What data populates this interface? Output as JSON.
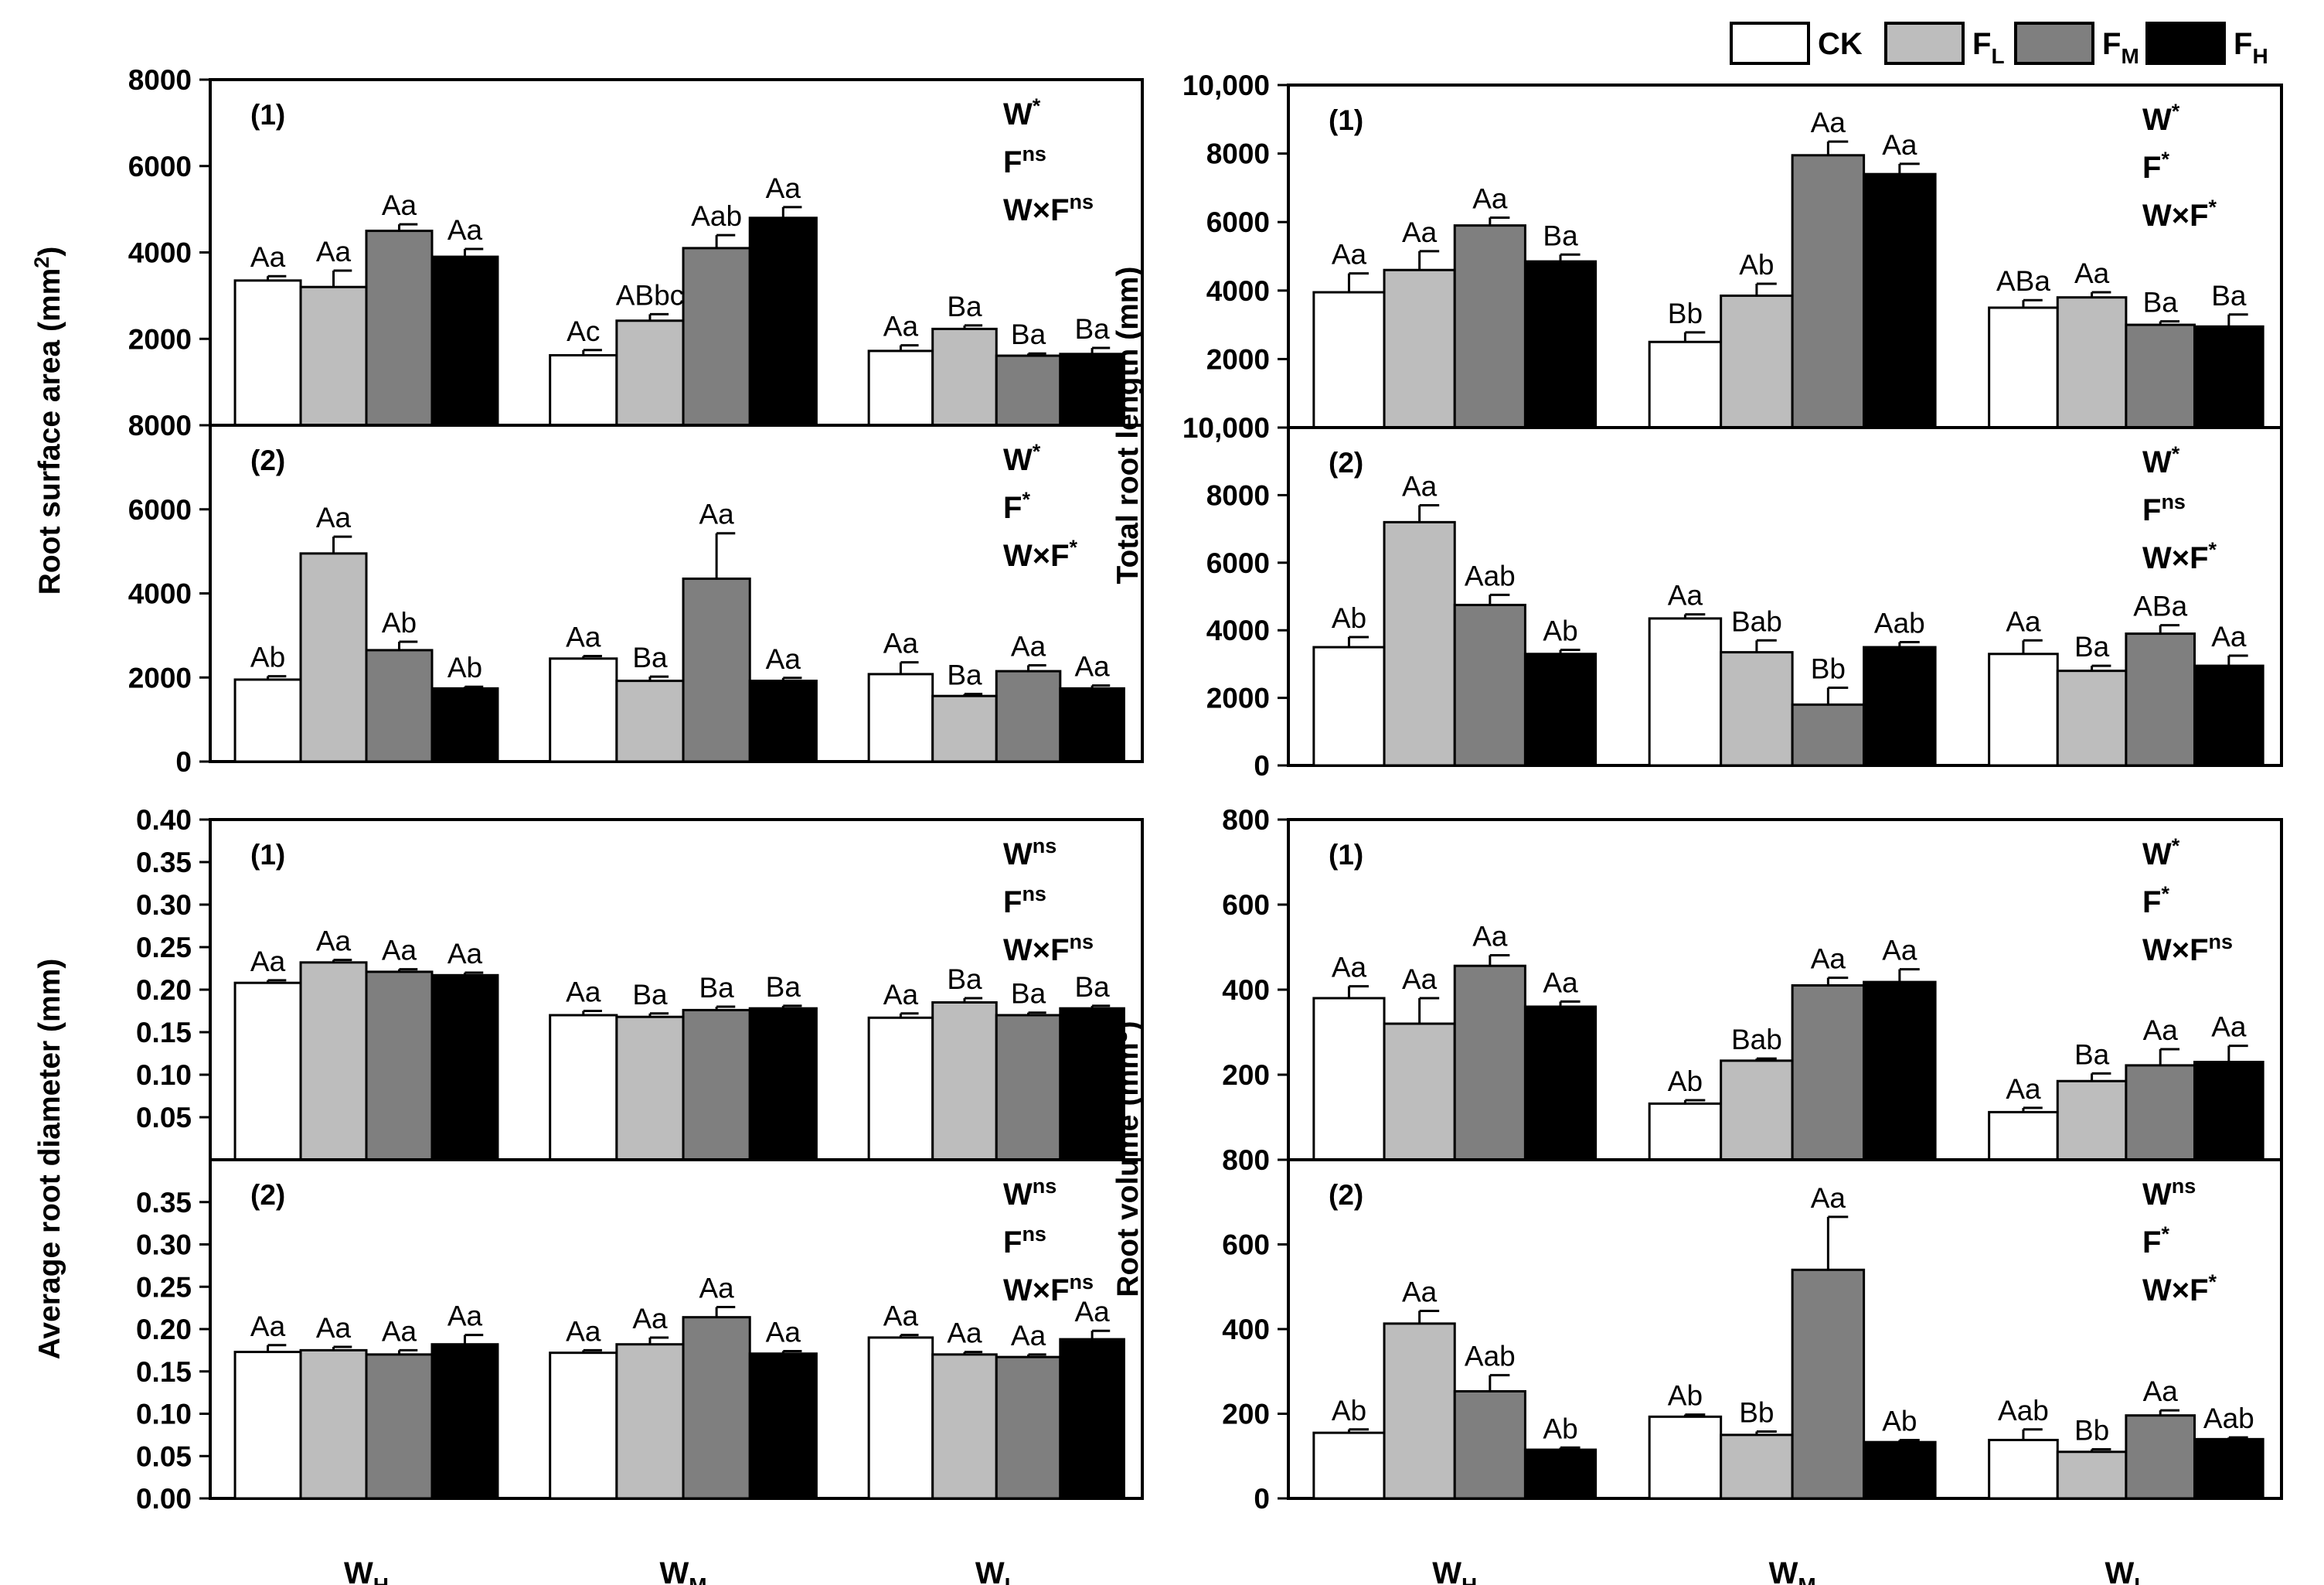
{
  "colors": {
    "CK": "#ffffff",
    "FL": "#bdbdbd",
    "FM": "#7f7f7f",
    "FH": "#000000"
  },
  "legend": [
    {
      "key": "CK",
      "label": "CK",
      "sub": ""
    },
    {
      "key": "FL",
      "label": "F",
      "sub": "L"
    },
    {
      "key": "FM",
      "label": "F",
      "sub": "M"
    },
    {
      "key": "FH",
      "label": "F",
      "sub": "H"
    }
  ],
  "x_groups": [
    {
      "label": "W",
      "sub": "H"
    },
    {
      "label": "W",
      "sub": "M"
    },
    {
      "label": "W",
      "sub": "L"
    }
  ],
  "chart_data": [
    {
      "id": "root-surface-area",
      "type": "bar",
      "ylabel": "Root surface area (mm²)",
      "ylabel_main": "Root surface area (mm",
      "ylabel_sup": "2",
      "ylabel_end": ")",
      "panels": [
        {
          "tag": "(1)",
          "ylim": [
            0,
            8000
          ],
          "ticks": [
            "2000",
            "4000",
            "6000",
            "8000"
          ],
          "tick_values": [
            2000,
            4000,
            6000,
            8000
          ],
          "stats": [
            {
              "b": "W",
              "sup": "*"
            },
            {
              "b": "F",
              "sup": "ns"
            },
            {
              "b": "W×F",
              "sup": "ns"
            }
          ],
          "series": [
            {
              "name": "CK",
              "values": [
                3350,
                1620,
                1720
              ],
              "errors": [
                100,
                120,
                130
              ],
              "labels": [
                "Aa",
                "Ac",
                "Aa"
              ]
            },
            {
              "name": "FL",
              "values": [
                3200,
                2420,
                2230
              ],
              "errors": [
                380,
                150,
                80
              ],
              "labels": [
                "Aa",
                "ABbc",
                "Ba"
              ]
            },
            {
              "name": "FM",
              "values": [
                4500,
                4100,
                1610
              ],
              "errors": [
                150,
                300,
                50
              ],
              "labels": [
                "Aa",
                "Aab",
                "Ba"
              ]
            },
            {
              "name": "FH",
              "values": [
                3900,
                4800,
                1650
              ],
              "errors": [
                180,
                250,
                140
              ],
              "labels": [
                "Aa",
                "Aa",
                "Ba"
              ]
            }
          ]
        },
        {
          "tag": "(2)",
          "ylim": [
            0,
            8000
          ],
          "ticks": [
            "0",
            "2000",
            "4000",
            "6000",
            "8000"
          ],
          "tick_values": [
            0,
            2000,
            4000,
            6000,
            8000
          ],
          "stats": [
            {
              "b": "W",
              "sup": "*"
            },
            {
              "b": "F",
              "sup": "*"
            },
            {
              "b": "W×F",
              "sup": "*"
            }
          ],
          "series": [
            {
              "name": "CK",
              "values": [
                1950,
                2450,
                2080
              ],
              "errors": [
                80,
                60,
                280
              ],
              "labels": [
                "Ab",
                "Aa",
                "Aa"
              ]
            },
            {
              "name": "FL",
              "values": [
                4950,
                1920,
                1560
              ],
              "errors": [
                400,
                100,
                50
              ],
              "labels": [
                "Aa",
                "Ba",
                "Ba"
              ]
            },
            {
              "name": "FM",
              "values": [
                2650,
                4350,
                2150
              ],
              "errors": [
                200,
                1080,
                140
              ],
              "labels": [
                "Ab",
                "Aa",
                "Aa"
              ]
            },
            {
              "name": "FH",
              "values": [
                1740,
                1920,
                1740
              ],
              "errors": [
                40,
                70,
                70
              ],
              "labels": [
                "Ab",
                "Aa",
                "Aa"
              ]
            }
          ]
        }
      ]
    },
    {
      "id": "total-root-length",
      "type": "bar",
      "ylabel": "Total root length (mm)",
      "ylabel_main": "Total root length (mm)",
      "ylabel_sup": "",
      "ylabel_end": "",
      "panels": [
        {
          "tag": "(1)",
          "ylim": [
            0,
            10000
          ],
          "ticks": [
            "2000",
            "4000",
            "6000",
            "8000",
            "10,000"
          ],
          "tick_values": [
            2000,
            4000,
            6000,
            8000,
            10000
          ],
          "stats": [
            {
              "b": "W",
              "sup": "*"
            },
            {
              "b": "F",
              "sup": "*"
            },
            {
              "b": "W×F",
              "sup": "*"
            }
          ],
          "series": [
            {
              "name": "CK",
              "values": [
                3950,
                2500,
                3500
              ],
              "errors": [
                550,
                280,
                220
              ],
              "labels": [
                "Aa",
                "Bb",
                "ABa"
              ]
            },
            {
              "name": "FL",
              "values": [
                4600,
                3850,
                3800
              ],
              "errors": [
                550,
                350,
                150
              ],
              "labels": [
                "Aa",
                "Ab",
                "Aa"
              ]
            },
            {
              "name": "FM",
              "values": [
                5900,
                7950,
                3000
              ],
              "errors": [
                230,
                400,
                100
              ],
              "labels": [
                "Aa",
                "Aa",
                "Ba"
              ]
            },
            {
              "name": "FH",
              "values": [
                4850,
                7400,
                2950
              ],
              "errors": [
                200,
                300,
                350
              ],
              "labels": [
                "Ba",
                "Aa",
                "Ba"
              ]
            }
          ]
        },
        {
          "tag": "(2)",
          "ylim": [
            0,
            10000
          ],
          "ticks": [
            "0",
            "2000",
            "4000",
            "6000",
            "8000",
            "10,000"
          ],
          "tick_values": [
            0,
            2000,
            4000,
            6000,
            8000,
            10000
          ],
          "stats": [
            {
              "b": "W",
              "sup": "*"
            },
            {
              "b": "F",
              "sup": "ns"
            },
            {
              "b": "W×F",
              "sup": "*"
            }
          ],
          "series": [
            {
              "name": "CK",
              "values": [
                3500,
                4350,
                3300
              ],
              "errors": [
                300,
                120,
                400
              ],
              "labels": [
                "Ab",
                "Aa",
                "Aa"
              ]
            },
            {
              "name": "FL",
              "values": [
                7200,
                3350,
                2800
              ],
              "errors": [
                500,
                350,
                150
              ],
              "labels": [
                "Aa",
                "Bab",
                "Ba"
              ]
            },
            {
              "name": "FM",
              "values": [
                4750,
                1800,
                3900
              ],
              "errors": [
                300,
                500,
                250
              ],
              "labels": [
                "Aab",
                "Bb",
                "ABa"
              ]
            },
            {
              "name": "FH",
              "values": [
                3300,
                3500,
                2950
              ],
              "errors": [
                120,
                150,
                300
              ],
              "labels": [
                "Ab",
                "Aab",
                "Aa"
              ]
            }
          ]
        }
      ]
    },
    {
      "id": "average-root-diameter",
      "type": "bar",
      "ylabel": "Average root diameter (mm)",
      "ylabel_main": "Average root diameter (mm)",
      "ylabel_sup": "",
      "ylabel_end": "",
      "panels": [
        {
          "tag": "(1)",
          "ylim": [
            0,
            0.4
          ],
          "ticks": [
            "0.05",
            "0.10",
            "0.15",
            "0.20",
            "0.25",
            "0.30",
            "0.35",
            "0.40"
          ],
          "tick_values": [
            0.05,
            0.1,
            0.15,
            0.2,
            0.25,
            0.3,
            0.35,
            0.4
          ],
          "stats": [
            {
              "b": "W",
              "sup": "ns"
            },
            {
              "b": "F",
              "sup": "ns"
            },
            {
              "b": "W×F",
              "sup": "ns"
            }
          ],
          "series": [
            {
              "name": "CK",
              "values": [
                0.208,
                0.17,
                0.167
              ],
              "errors": [
                0.003,
                0.005,
                0.005
              ],
              "labels": [
                "Aa",
                "Aa",
                "Aa"
              ]
            },
            {
              "name": "FL",
              "values": [
                0.232,
                0.168,
                0.185
              ],
              "errors": [
                0.003,
                0.004,
                0.005
              ],
              "labels": [
                "Aa",
                "Ba",
                "Ba"
              ]
            },
            {
              "name": "FM",
              "values": [
                0.221,
                0.176,
                0.17
              ],
              "errors": [
                0.003,
                0.004,
                0.003
              ],
              "labels": [
                "Aa",
                "Ba",
                "Ba"
              ]
            },
            {
              "name": "FH",
              "values": [
                0.217,
                0.178,
                0.178
              ],
              "errors": [
                0.003,
                0.003,
                0.003
              ],
              "labels": [
                "Aa",
                "Ba",
                "Ba"
              ]
            }
          ]
        },
        {
          "tag": "(2)",
          "ylim": [
            0,
            0.4
          ],
          "ticks": [
            "0.00",
            "0.05",
            "0.10",
            "0.15",
            "0.20",
            "0.25",
            "0.30",
            "0.35"
          ],
          "tick_values": [
            0,
            0.05,
            0.1,
            0.15,
            0.2,
            0.25,
            0.3,
            0.35
          ],
          "stats": [
            {
              "b": "W",
              "sup": "ns"
            },
            {
              "b": "F",
              "sup": "ns"
            },
            {
              "b": "W×F",
              "sup": "ns"
            }
          ],
          "series": [
            {
              "name": "CK",
              "values": [
                0.173,
                0.172,
                0.19
              ],
              "errors": [
                0.008,
                0.003,
                0.003
              ],
              "labels": [
                "Aa",
                "Aa",
                "Aa"
              ]
            },
            {
              "name": "FL",
              "values": [
                0.175,
                0.182,
                0.17
              ],
              "errors": [
                0.004,
                0.008,
                0.003
              ],
              "labels": [
                "Aa",
                "Aa",
                "Aa"
              ]
            },
            {
              "name": "FM",
              "values": [
                0.17,
                0.214,
                0.167
              ],
              "errors": [
                0.005,
                0.012,
                0.003
              ],
              "labels": [
                "Aa",
                "Aa",
                "Aa"
              ]
            },
            {
              "name": "FH",
              "values": [
                0.182,
                0.171,
                0.188
              ],
              "errors": [
                0.011,
                0.003,
                0.01
              ],
              "labels": [
                "Aa",
                "Aa",
                "Aa"
              ]
            }
          ]
        }
      ]
    },
    {
      "id": "root-volume",
      "type": "bar",
      "ylabel": "Root volume (mm³)",
      "ylabel_main": "Root volume (mm",
      "ylabel_sup": "3",
      "ylabel_end": ")",
      "panels": [
        {
          "tag": "(1)",
          "ylim": [
            0,
            800
          ],
          "ticks": [
            "200",
            "400",
            "600",
            "800"
          ],
          "tick_values": [
            200,
            400,
            600,
            800
          ],
          "stats": [
            {
              "b": "W",
              "sup": "*"
            },
            {
              "b": "F",
              "sup": "*"
            },
            {
              "b": "W×F",
              "sup": "ns"
            }
          ],
          "series": [
            {
              "name": "CK",
              "values": [
                380,
                132,
                112
              ],
              "errors": [
                28,
                8,
                10
              ],
              "labels": [
                "Aa",
                "Ab",
                "Aa"
              ]
            },
            {
              "name": "FL",
              "values": [
                320,
                233,
                185
              ],
              "errors": [
                60,
                5,
                18
              ],
              "labels": [
                "Aa",
                "Bab",
                "Ba"
              ]
            },
            {
              "name": "FM",
              "values": [
                456,
                410,
                222
              ],
              "errors": [
                25,
                18,
                38
              ],
              "labels": [
                "Aa",
                "Aa",
                "Aa"
              ]
            },
            {
              "name": "FH",
              "values": [
                360,
                418,
                230
              ],
              "errors": [
                12,
                30,
                38
              ],
              "labels": [
                "Aa",
                "Aa",
                "Aa"
              ]
            }
          ]
        },
        {
          "tag": "(2)",
          "ylim": [
            0,
            800
          ],
          "ticks": [
            "0",
            "200",
            "400",
            "600",
            "800"
          ],
          "tick_values": [
            0,
            200,
            400,
            600,
            800
          ],
          "stats": [
            {
              "b": "W",
              "sup": "ns"
            },
            {
              "b": "F",
              "sup": "*"
            },
            {
              "b": "W×F",
              "sup": "*"
            }
          ],
          "series": [
            {
              "name": "CK",
              "values": [
                155,
                193,
                138
              ],
              "errors": [
                8,
                5,
                25
              ],
              "labels": [
                "Ab",
                "Ab",
                "Aab"
              ]
            },
            {
              "name": "FL",
              "values": [
                413,
                150,
                110
              ],
              "errors": [
                30,
                8,
                6
              ],
              "labels": [
                "Aa",
                "Bb",
                "Bb"
              ]
            },
            {
              "name": "FM",
              "values": [
                253,
                540,
                196
              ],
              "errors": [
                38,
                125,
                12
              ],
              "labels": [
                "Aab",
                "Aa",
                "Aa"
              ]
            },
            {
              "name": "FH",
              "values": [
                115,
                133,
                140
              ],
              "errors": [
                5,
                5,
                4
              ],
              "labels": [
                "Ab",
                "Ab",
                "Aab"
              ]
            }
          ]
        }
      ]
    }
  ]
}
